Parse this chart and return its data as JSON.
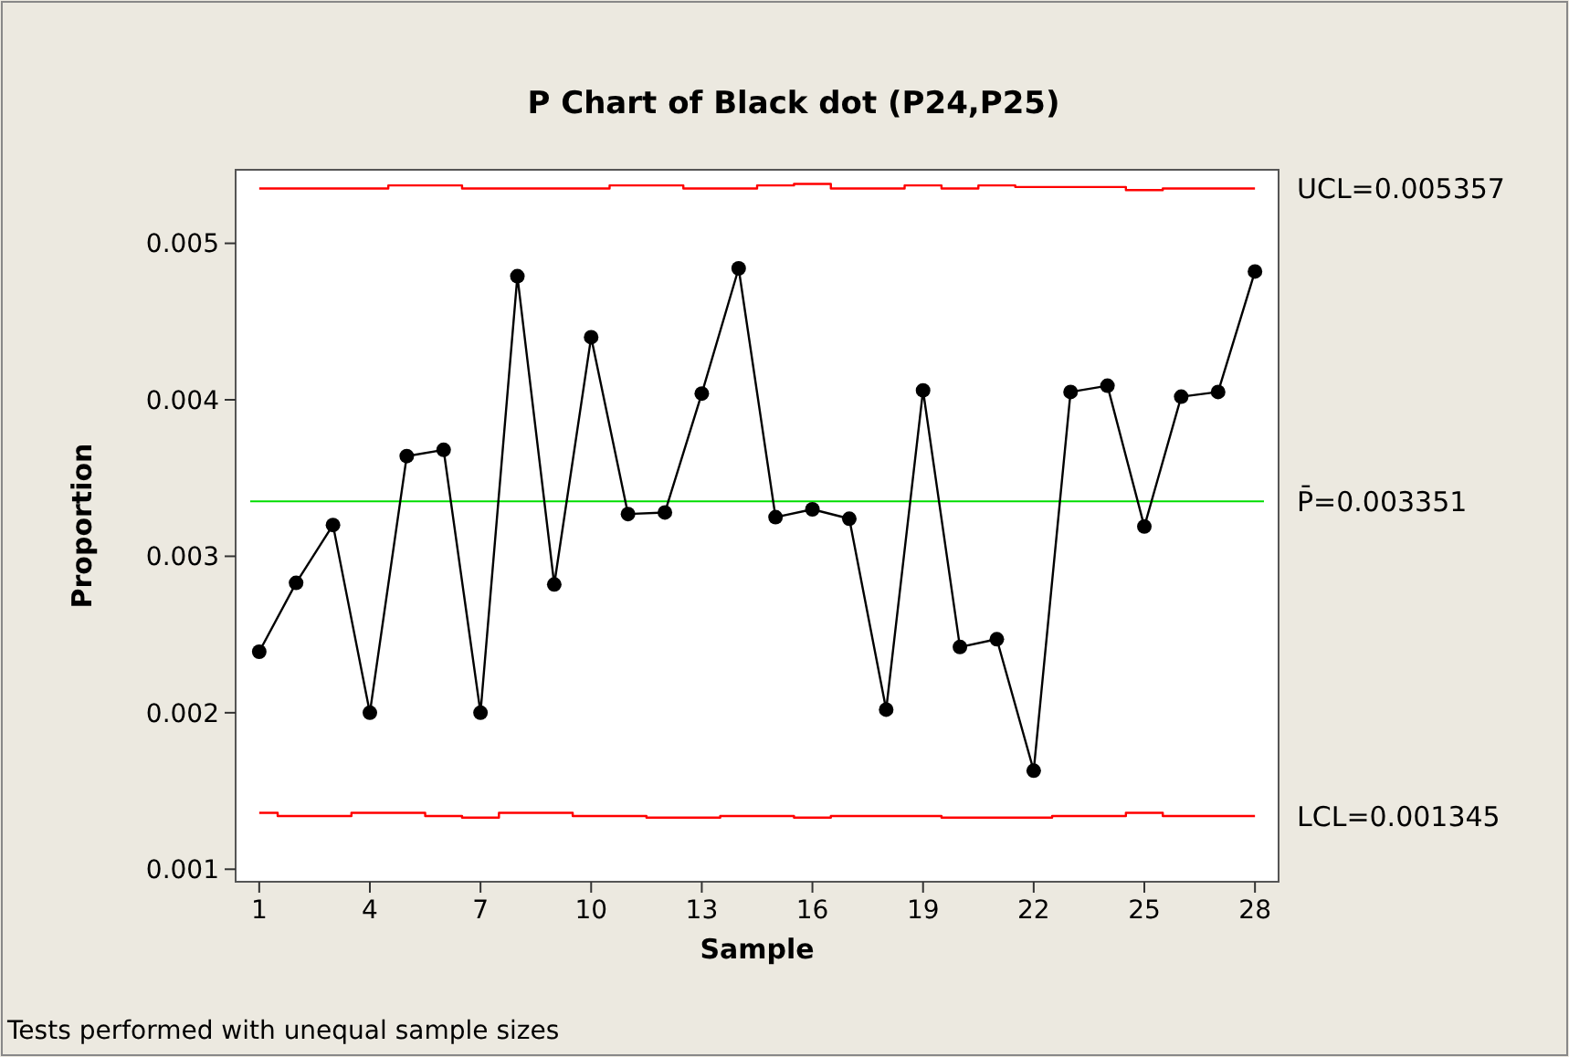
{
  "chart_data": {
    "type": "line",
    "title": "P Chart of Black dot (P24,P25)",
    "xlabel": "Sample",
    "ylabel": "Proportion",
    "x": [
      1,
      2,
      3,
      4,
      5,
      6,
      7,
      8,
      9,
      10,
      11,
      12,
      13,
      14,
      15,
      16,
      17,
      18,
      19,
      20,
      21,
      22,
      23,
      24,
      25,
      26,
      27,
      28
    ],
    "series": [
      {
        "type": "line",
        "color": "#000000",
        "marker": "circle",
        "values": [
          0.00239,
          0.00283,
          0.0032,
          0.002,
          0.00364,
          0.00368,
          0.002,
          0.00479,
          0.00282,
          0.0044,
          0.00327,
          0.00328,
          0.00404,
          0.00484,
          0.00325,
          0.0033,
          0.00324,
          0.00202,
          0.00406,
          0.00242,
          0.00247,
          0.00163,
          0.00405,
          0.00409,
          0.00319,
          0.00402,
          0.00405,
          0.00482
        ]
      },
      {
        "type": "step",
        "name": "UCL=0.005357",
        "color": "#ff0000",
        "marker": "none",
        "values": [
          0.00535,
          0.00535,
          0.00535,
          0.00535,
          0.00537,
          0.00537,
          0.00535,
          0.00535,
          0.00535,
          0.00535,
          0.00537,
          0.00537,
          0.00535,
          0.00535,
          0.00537,
          0.00538,
          0.00535,
          0.00535,
          0.00537,
          0.00535,
          0.00537,
          0.00536,
          0.00536,
          0.00536,
          0.00534,
          0.00535,
          0.00535,
          0.00535
        ]
      },
      {
        "type": "step",
        "name": "LCL=0.001345",
        "color": "#ff0000",
        "marker": "none",
        "values": [
          0.00136,
          0.00134,
          0.00134,
          0.00136,
          0.00136,
          0.00134,
          0.00133,
          0.00136,
          0.00136,
          0.00134,
          0.00134,
          0.00133,
          0.00133,
          0.00134,
          0.00134,
          0.00133,
          0.00134,
          0.00134,
          0.00134,
          0.00133,
          0.00133,
          0.00133,
          0.00134,
          0.00134,
          0.00136,
          0.00134,
          0.00134,
          0.00134
        ]
      }
    ],
    "ref_lines": [
      {
        "axis": "y",
        "value": 0.003351,
        "label": "P̄=0.003351",
        "color": "#00dd00"
      }
    ],
    "xlim": [
      0.36,
      28.64
    ],
    "xticks": [
      1,
      4,
      7,
      10,
      13,
      16,
      19,
      22,
      25,
      28
    ],
    "ylim": [
      0.00092,
      0.00547
    ],
    "yticks": [
      0.001,
      0.002,
      0.003,
      0.004,
      0.005
    ],
    "annotations": [
      "Tests performed with unequal sample sizes"
    ]
  }
}
